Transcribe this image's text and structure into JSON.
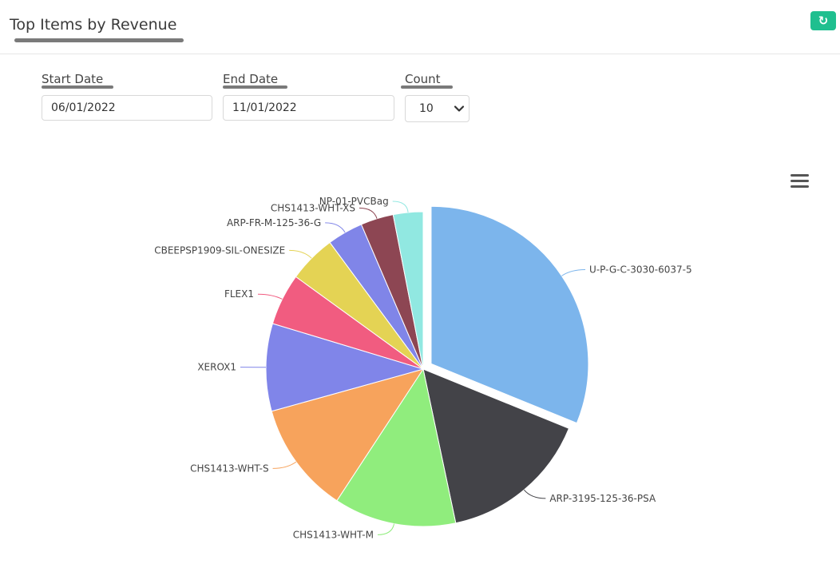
{
  "header": {
    "title": "Top Items by Revenue"
  },
  "filters": {
    "start_date": {
      "label": "Start Date",
      "value": "06/01/2022"
    },
    "end_date": {
      "label": "End Date",
      "value": "11/01/2022"
    },
    "count": {
      "label": "Count",
      "value": "10"
    }
  },
  "icons": {
    "refresh": "refresh-icon",
    "menu": "hamburger-menu-icon",
    "dropdown": "chevron-down-icon"
  },
  "colors": {
    "accent": "#1fbf8f"
  },
  "chart_data": {
    "type": "pie",
    "title": "",
    "slices": [
      {
        "name": "U-P-G-C-3030-6037-5",
        "value": 30.5,
        "color": "#7cb5ec",
        "sliced": true
      },
      {
        "name": "ARP-3195-125-36-PSA",
        "value": 15.2,
        "color": "#434348",
        "sliced": false
      },
      {
        "name": "CHS1413-WHT-M",
        "value": 12.3,
        "color": "#90ed7d",
        "sliced": false
      },
      {
        "name": "CHS1413-WHT-S",
        "value": 11.2,
        "color": "#f7a35c",
        "sliced": false
      },
      {
        "name": "XEROX1",
        "value": 8.8,
        "color": "#8085e9",
        "sliced": false
      },
      {
        "name": "FLEX1",
        "value": 5.2,
        "color": "#f15c80",
        "sliced": false
      },
      {
        "name": "CBEEPSP1909-SIL-ONESIZE",
        "value": 4.8,
        "color": "#e4d354",
        "sliced": false
      },
      {
        "name": "ARP-FR-M-125-36-G",
        "value": 3.6,
        "color": "#8085e8",
        "sliced": false
      },
      {
        "name": "CHS1413-WHT-XS",
        "value": 3.3,
        "color": "#8d4653",
        "sliced": false
      },
      {
        "name": "NP-01-PVCBag",
        "value": 3.0,
        "color": "#91e8e1",
        "sliced": false
      }
    ]
  }
}
